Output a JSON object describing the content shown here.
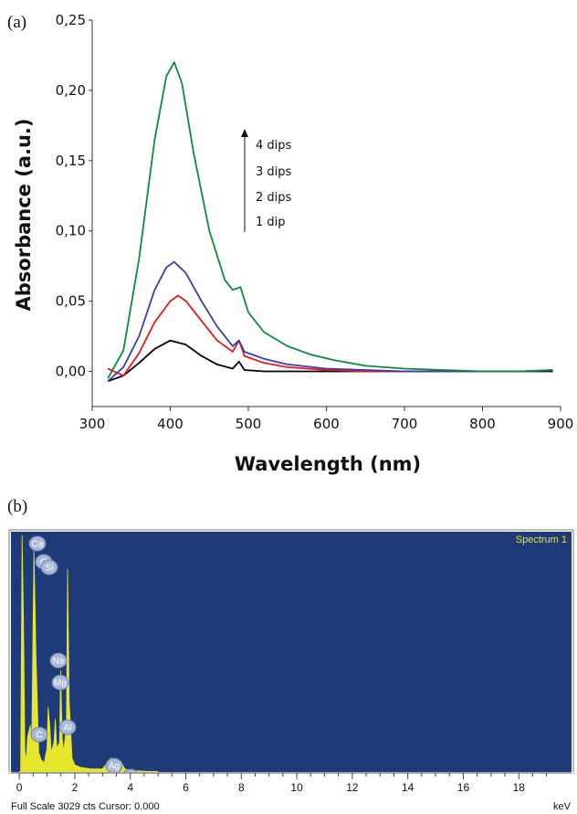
{
  "panel_a_label": "(a)",
  "panel_b_label": "(b)",
  "chart_data": [
    {
      "type": "line",
      "xlabel": "Wavelength (nm)",
      "ylabel": "Absorbance (a.u.)",
      "xlim": [
        300,
        900
      ],
      "ylim": [
        -0.025,
        0.25
      ],
      "xticks": [
        300,
        400,
        500,
        600,
        700,
        800,
        900
      ],
      "yticks": [
        "0,00",
        "0,05",
        "0,10",
        "0,15",
        "0,20",
        "0,25"
      ],
      "ytick_values": [
        0,
        0.05,
        0.1,
        0.15,
        0.2,
        0.25
      ],
      "annotation": {
        "arrow": true,
        "labels": [
          "4 dips",
          "3 dips",
          "2 dips",
          "1 dip"
        ]
      },
      "series": [
        {
          "color": "#000000",
          "x": [
            320,
            340,
            360,
            380,
            400,
            420,
            440,
            460,
            480,
            488,
            495,
            520,
            550,
            600,
            650,
            700,
            750,
            800,
            850,
            890
          ],
          "values": [
            -0.007,
            -0.003,
            0.006,
            0.016,
            0.022,
            0.019,
            0.011,
            0.005,
            0.002,
            0.007,
            0.001,
            0.0,
            0.0,
            0.0,
            0.0,
            0.0,
            0.0,
            0.0,
            0.0,
            0.0
          ]
        },
        {
          "color": "#e8171d",
          "x": [
            320,
            340,
            360,
            380,
            400,
            410,
            420,
            440,
            460,
            480,
            488,
            495,
            520,
            550,
            600,
            650,
            700,
            750,
            800,
            850,
            890
          ],
          "values": [
            0.002,
            -0.003,
            0.013,
            0.035,
            0.05,
            0.054,
            0.05,
            0.036,
            0.022,
            0.014,
            0.022,
            0.011,
            0.006,
            0.003,
            0.001,
            0.0,
            0.0,
            0.0,
            0.0,
            0.0,
            0.001
          ]
        },
        {
          "color": "#3c3caa",
          "x": [
            320,
            340,
            360,
            380,
            395,
            405,
            420,
            440,
            460,
            480,
            488,
            495,
            520,
            550,
            600,
            650,
            700,
            750,
            800,
            850,
            890
          ],
          "values": [
            -0.007,
            0.003,
            0.025,
            0.058,
            0.074,
            0.078,
            0.07,
            0.05,
            0.032,
            0.018,
            0.022,
            0.014,
            0.009,
            0.005,
            0.002,
            0.001,
            0.0,
            0.0,
            0.0,
            0.0,
            0.001
          ]
        },
        {
          "color": "#0e8a3c",
          "x": [
            320,
            340,
            360,
            380,
            395,
            405,
            415,
            430,
            450,
            470,
            480,
            490,
            500,
            520,
            550,
            580,
            610,
            650,
            700,
            750,
            800,
            850,
            890
          ],
          "values": [
            -0.005,
            0.015,
            0.08,
            0.165,
            0.21,
            0.22,
            0.205,
            0.155,
            0.1,
            0.065,
            0.058,
            0.06,
            0.042,
            0.028,
            0.018,
            0.012,
            0.008,
            0.004,
            0.002,
            0.001,
            0.0,
            0.0,
            0.001
          ]
        }
      ]
    },
    {
      "type": "area",
      "title": "Spectrum 1",
      "xlabel": "keV",
      "xlim": [
        -0.3,
        19.9
      ],
      "ylim": [
        0,
        3029
      ],
      "xticks": [
        0,
        2,
        4,
        6,
        8,
        10,
        12,
        14,
        16,
        18
      ],
      "x": [
        0.05,
        0.1,
        0.15,
        0.2,
        0.25,
        0.3,
        0.4,
        0.45,
        0.5,
        0.53,
        0.6,
        0.7,
        0.8,
        0.9,
        1.0,
        1.04,
        1.1,
        1.15,
        1.25,
        1.3,
        1.35,
        1.45,
        1.49,
        1.55,
        1.6,
        1.7,
        1.74,
        1.8,
        1.9,
        2.0,
        2.2,
        2.6,
        3.0,
        3.3,
        3.5,
        3.69,
        3.8,
        4.0,
        4.5,
        5.0
      ],
      "values": [
        0,
        3029,
        2000,
        300,
        120,
        450,
        600,
        380,
        2000,
        2850,
        1500,
        250,
        150,
        120,
        300,
        830,
        580,
        250,
        380,
        680,
        300,
        380,
        1300,
        420,
        260,
        600,
        2600,
        900,
        180,
        90,
        60,
        40,
        40,
        180,
        40,
        120,
        40,
        20,
        10,
        0
      ],
      "peak_labels": [
        {
          "element": "Ca",
          "kev": 0.34
        },
        {
          "element": "O",
          "kev": 0.53
        },
        {
          "element": "Si",
          "kev": 1.74
        },
        {
          "element": "Na",
          "kev": 1.04
        },
        {
          "element": "Mg",
          "kev": 1.25
        },
        {
          "element": "C",
          "kev": 0.28
        },
        {
          "element": "Al",
          "kev": 1.49
        },
        {
          "element": "Ag",
          "kev": 3.0
        },
        {
          "element": "Ca",
          "kev": 3.69
        }
      ],
      "status_text": "Full Scale 3029 cts Cursor: 0.000",
      "colors": {
        "background": "#1f3a79",
        "fill": "#e6e62a",
        "frame": "#7a7a7a"
      }
    }
  ]
}
